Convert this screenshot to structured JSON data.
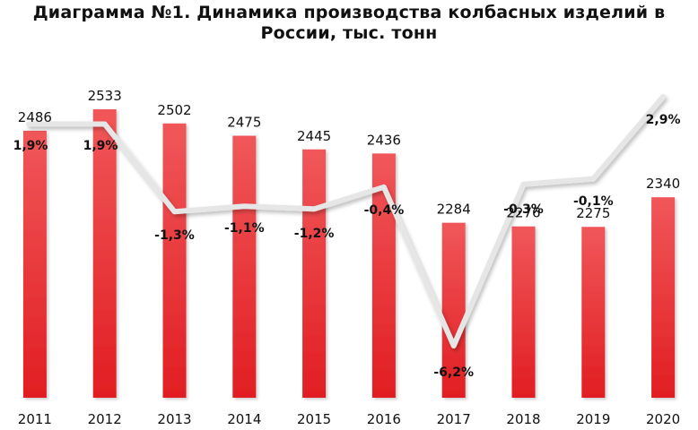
{
  "chart_data": {
    "type": "bar",
    "title": "Диаграмма №1. Динамика производства колбасных изделий в России, тыс. тонн",
    "title_lines": [
      "Диаграмма №1. Динамика производства колбасных изделий в",
      "России, тыс. тонн"
    ],
    "categories": [
      "2011",
      "2012",
      "2013",
      "2014",
      "2015",
      "2016",
      "2017",
      "2018",
      "2019",
      "2020"
    ],
    "series": [
      {
        "type": "bar",
        "values": [
          2486,
          2533,
          2502,
          2475,
          2445,
          2436,
          2284,
          2276,
          2275,
          2340
        ],
        "labels": [
          "2486",
          "2533",
          "2502",
          "2475",
          "2445",
          "2436",
          "2284",
          "2276",
          "2275",
          "2340"
        ],
        "color": "#e8262a"
      },
      {
        "type": "line",
        "values": [
          1.9,
          1.9,
          -1.3,
          -1.1,
          -1.2,
          -0.4,
          -6.2,
          -0.3,
          -0.1,
          2.9
        ],
        "labels": [
          "1,9%",
          "1,9%",
          "-1,3%",
          "-1,1%",
          "-1,2%",
          "-0,4%",
          "-6,2%",
          "-0,3%",
          "-0,1%",
          "2,9%"
        ],
        "color": "#e6e6e6"
      }
    ],
    "grid": false,
    "legend": "none"
  }
}
